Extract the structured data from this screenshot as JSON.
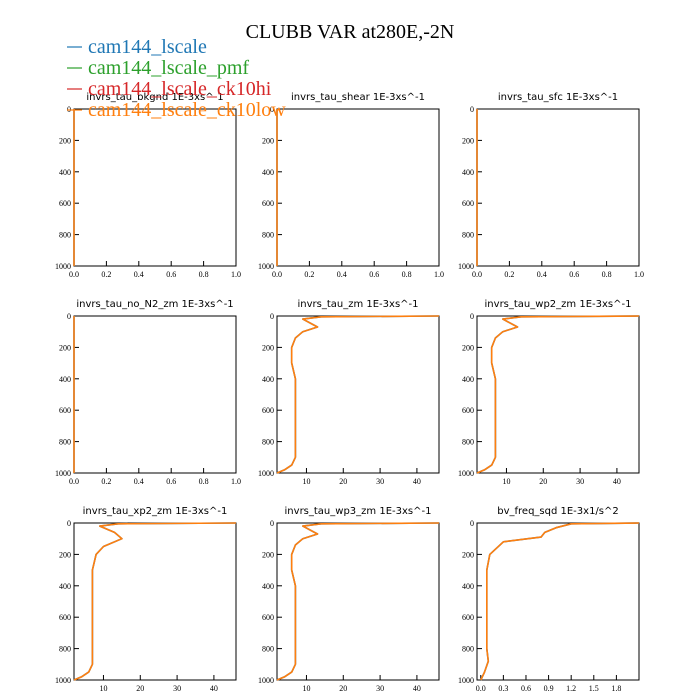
{
  "figure": {
    "title": "CLUBB VAR at280E,-2N"
  },
  "legend": [
    {
      "name": "cam144_lscale",
      "color": "#1f77b4"
    },
    {
      "name": "cam144_lscale_pmf",
      "color": "#2ca02c"
    },
    {
      "name": "cam144_lscale_ck10hi",
      "color": "#d62728"
    },
    {
      "name": "cam144_lscale_ck10low",
      "color": "#ff7f0e"
    }
  ],
  "chart_data": [
    {
      "type": "line",
      "title": "invrs_tau_bkgnd 1E-3xs^-1",
      "xlim": [
        0,
        1
      ],
      "ylim": [
        1000,
        0
      ],
      "xticks": [
        "0.0",
        "0.2",
        "0.4",
        "0.6",
        "0.8",
        "1.0"
      ],
      "xtick_values": [
        0,
        0.2,
        0.4,
        0.6,
        0.8,
        1.0
      ],
      "yticks": [
        "0",
        "200",
        "400",
        "600",
        "800",
        "1000"
      ],
      "ytick_values": [
        0,
        200,
        400,
        600,
        800,
        1000
      ],
      "series": [
        {
          "color": "#1f77b4",
          "x": [
            0.0,
            0.0
          ],
          "y": [
            0,
            1000
          ]
        },
        {
          "color": "#ff7f0e",
          "x": [
            0.0,
            0.0
          ],
          "y": [
            0,
            1000
          ]
        }
      ]
    },
    {
      "type": "line",
      "title": "invrs_tau_shear 1E-3xs^-1",
      "xlim": [
        0,
        1
      ],
      "ylim": [
        1000,
        0
      ],
      "xticks": [
        "0.0",
        "0.2",
        "0.4",
        "0.6",
        "0.8",
        "1.0"
      ],
      "xtick_values": [
        0,
        0.2,
        0.4,
        0.6,
        0.8,
        1.0
      ],
      "yticks": [
        "0",
        "200",
        "400",
        "600",
        "800",
        "1000"
      ],
      "ytick_values": [
        0,
        200,
        400,
        600,
        800,
        1000
      ],
      "series": [
        {
          "color": "#1f77b4",
          "x": [
            0.0,
            0.0
          ],
          "y": [
            0,
            1000
          ]
        },
        {
          "color": "#ff7f0e",
          "x": [
            0.0,
            0.0
          ],
          "y": [
            0,
            1000
          ]
        }
      ]
    },
    {
      "type": "line",
      "title": "invrs_tau_sfc 1E-3xs^-1",
      "xlim": [
        0,
        1
      ],
      "ylim": [
        1000,
        0
      ],
      "xticks": [
        "0.0",
        "0.2",
        "0.4",
        "0.6",
        "0.8",
        "1.0"
      ],
      "xtick_values": [
        0,
        0.2,
        0.4,
        0.6,
        0.8,
        1.0
      ],
      "yticks": [
        "0",
        "200",
        "400",
        "600",
        "800",
        "1000"
      ],
      "ytick_values": [
        0,
        200,
        400,
        600,
        800,
        1000
      ],
      "series": [
        {
          "color": "#1f77b4",
          "x": [
            0.0,
            0.0
          ],
          "y": [
            0,
            1000
          ]
        },
        {
          "color": "#ff7f0e",
          "x": [
            0.0,
            0.0
          ],
          "y": [
            0,
            1000
          ]
        }
      ]
    },
    {
      "type": "line",
      "title": "invrs_tau_no_N2_zm 1E-3xs^-1",
      "xlim": [
        0,
        1
      ],
      "ylim": [
        1000,
        0
      ],
      "xticks": [
        "0.0",
        "0.2",
        "0.4",
        "0.6",
        "0.8",
        "1.0"
      ],
      "xtick_values": [
        0,
        0.2,
        0.4,
        0.6,
        0.8,
        1.0
      ],
      "yticks": [
        "0",
        "200",
        "400",
        "600",
        "800",
        "1000"
      ],
      "ytick_values": [
        0,
        200,
        400,
        600,
        800,
        1000
      ],
      "series": [
        {
          "color": "#1f77b4",
          "x": [
            0.0,
            0.0
          ],
          "y": [
            0,
            1000
          ]
        },
        {
          "color": "#ff7f0e",
          "x": [
            0.0,
            0.0
          ],
          "y": [
            0,
            1000
          ]
        }
      ]
    },
    {
      "type": "line",
      "title": "invrs_tau_zm 1E-3xs^-1",
      "xlim": [
        2,
        46
      ],
      "ylim": [
        1000,
        0
      ],
      "xticks": [
        "10",
        "20",
        "30",
        "40"
      ],
      "xtick_values": [
        10,
        20,
        30,
        40
      ],
      "yticks": [
        "0",
        "200",
        "400",
        "600",
        "800",
        "1000"
      ],
      "ytick_values": [
        0,
        200,
        400,
        600,
        800,
        1000
      ],
      "series": [
        {
          "color": "#1f77b4",
          "x": [
            46,
            14,
            9,
            13,
            9,
            7,
            6,
            6,
            7,
            7,
            7,
            7,
            7,
            7,
            7,
            6,
            4,
            2
          ],
          "y": [
            0,
            5,
            20,
            70,
            100,
            140,
            200,
            300,
            400,
            500,
            600,
            700,
            800,
            860,
            900,
            950,
            980,
            1000
          ]
        },
        {
          "color": "#ff7f0e",
          "x": [
            46,
            14,
            9,
            13,
            9,
            7,
            6,
            6,
            7,
            7,
            7,
            7,
            7,
            7,
            7,
            6,
            4,
            2
          ],
          "y": [
            0,
            5,
            20,
            70,
            100,
            140,
            200,
            300,
            400,
            500,
            600,
            700,
            800,
            860,
            900,
            950,
            980,
            1000
          ]
        }
      ]
    },
    {
      "type": "line",
      "title": "invrs_tau_wp2_zm 1E-3xs^-1",
      "xlim": [
        2,
        46
      ],
      "ylim": [
        1000,
        0
      ],
      "xticks": [
        "10",
        "20",
        "30",
        "40"
      ],
      "xtick_values": [
        10,
        20,
        30,
        40
      ],
      "yticks": [
        "0",
        "200",
        "400",
        "600",
        "800",
        "1000"
      ],
      "ytick_values": [
        0,
        200,
        400,
        600,
        800,
        1000
      ],
      "series": [
        {
          "color": "#1f77b4",
          "x": [
            46,
            14,
            9,
            13,
            9,
            7,
            6,
            6,
            7,
            7,
            7,
            7,
            7,
            7,
            7,
            6,
            4,
            2
          ],
          "y": [
            0,
            5,
            20,
            70,
            100,
            140,
            200,
            300,
            400,
            500,
            600,
            700,
            800,
            860,
            900,
            950,
            980,
            1000
          ]
        },
        {
          "color": "#ff7f0e",
          "x": [
            46,
            14,
            9,
            13,
            9,
            7,
            6,
            6,
            7,
            7,
            7,
            7,
            7,
            7,
            7,
            6,
            4,
            2
          ],
          "y": [
            0,
            5,
            20,
            70,
            100,
            140,
            200,
            300,
            400,
            500,
            600,
            700,
            800,
            860,
            900,
            950,
            980,
            1000
          ]
        }
      ]
    },
    {
      "type": "line",
      "title": "invrs_tau_xp2_zm 1E-3xs^-1",
      "xlim": [
        2,
        46
      ],
      "ylim": [
        1000,
        0
      ],
      "xticks": [
        "10",
        "20",
        "30",
        "40"
      ],
      "xtick_values": [
        10,
        20,
        30,
        40
      ],
      "yticks": [
        "0",
        "200",
        "400",
        "600",
        "800",
        "1000"
      ],
      "ytick_values": [
        0,
        200,
        400,
        600,
        800,
        1000
      ],
      "series": [
        {
          "color": "#1f77b4",
          "x": [
            46,
            14,
            9,
            13,
            15,
            10,
            8,
            7,
            7,
            7,
            7,
            7,
            7,
            7,
            7,
            6,
            4,
            2
          ],
          "y": [
            0,
            5,
            20,
            60,
            100,
            150,
            200,
            300,
            400,
            500,
            600,
            700,
            800,
            860,
            900,
            950,
            980,
            1000
          ]
        },
        {
          "color": "#ff7f0e",
          "x": [
            46,
            14,
            9,
            13,
            15,
            10,
            8,
            7,
            7,
            7,
            7,
            7,
            7,
            7,
            7,
            6,
            4,
            2
          ],
          "y": [
            0,
            5,
            20,
            60,
            100,
            150,
            200,
            300,
            400,
            500,
            600,
            700,
            800,
            860,
            900,
            950,
            980,
            1000
          ]
        }
      ]
    },
    {
      "type": "line",
      "title": "invrs_tau_wp3_zm 1E-3xs^-1",
      "xlim": [
        2,
        46
      ],
      "ylim": [
        1000,
        0
      ],
      "xticks": [
        "10",
        "20",
        "30",
        "40"
      ],
      "xtick_values": [
        10,
        20,
        30,
        40
      ],
      "yticks": [
        "0",
        "200",
        "400",
        "600",
        "800",
        "1000"
      ],
      "ytick_values": [
        0,
        200,
        400,
        600,
        800,
        1000
      ],
      "series": [
        {
          "color": "#1f77b4",
          "x": [
            46,
            14,
            9,
            13,
            9,
            7,
            6,
            6,
            7,
            7,
            7,
            7,
            7,
            7,
            7,
            6,
            4,
            2
          ],
          "y": [
            0,
            5,
            20,
            70,
            100,
            140,
            200,
            300,
            400,
            500,
            600,
            700,
            800,
            860,
            900,
            950,
            980,
            1000
          ]
        },
        {
          "color": "#ff7f0e",
          "x": [
            46,
            14,
            9,
            13,
            9,
            7,
            6,
            6,
            7,
            7,
            7,
            7,
            7,
            7,
            7,
            6,
            4,
            2
          ],
          "y": [
            0,
            5,
            20,
            70,
            100,
            140,
            200,
            300,
            400,
            500,
            600,
            700,
            800,
            860,
            900,
            950,
            980,
            1000
          ]
        }
      ]
    },
    {
      "type": "line",
      "title": "bv_freq_sqd 1E-3x1/s^2",
      "xlim": [
        -0.05,
        2.1
      ],
      "ylim": [
        1000,
        0
      ],
      "xticks": [
        "0.0",
        "0.3",
        "0.6",
        "0.9",
        "1.2",
        "1.5",
        "1.8"
      ],
      "xtick_values": [
        0,
        0.3,
        0.6,
        0.9,
        1.2,
        1.5,
        1.8
      ],
      "yticks": [
        "0",
        "200",
        "400",
        "600",
        "800",
        "1000"
      ],
      "ytick_values": [
        0,
        200,
        400,
        600,
        800,
        1000
      ],
      "series": [
        {
          "color": "#1f77b4",
          "x": [
            2.1,
            1.2,
            1.0,
            0.85,
            0.8,
            0.3,
            0.12,
            0.08,
            0.08,
            0.08,
            0.08,
            0.08,
            0.08,
            0.1,
            0.05,
            0.0
          ],
          "y": [
            0,
            5,
            30,
            60,
            90,
            120,
            200,
            300,
            400,
            500,
            600,
            700,
            800,
            880,
            950,
            1000
          ]
        },
        {
          "color": "#ff7f0e",
          "x": [
            2.1,
            1.2,
            1.0,
            0.85,
            0.8,
            0.3,
            0.12,
            0.08,
            0.08,
            0.08,
            0.08,
            0.08,
            0.08,
            0.1,
            0.05,
            0.0
          ],
          "y": [
            0,
            5,
            30,
            60,
            90,
            120,
            200,
            300,
            400,
            500,
            600,
            700,
            800,
            880,
            950,
            1000
          ]
        }
      ]
    }
  ]
}
